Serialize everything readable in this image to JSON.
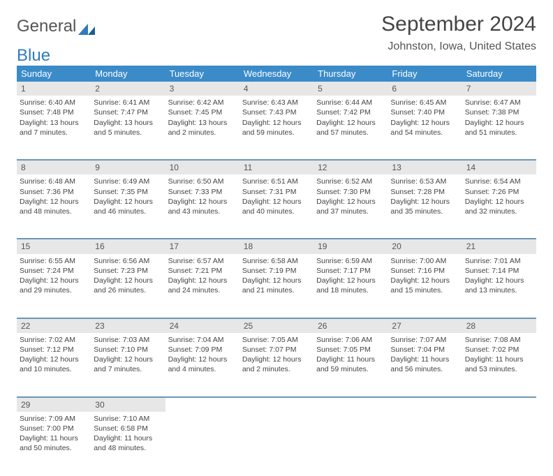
{
  "brand": {
    "part1": "General",
    "part2": "Blue"
  },
  "title": "September 2024",
  "location": "Johnston, Iowa, United States",
  "colors": {
    "header_bg": "#3b8bc9",
    "header_text": "#ffffff",
    "daynum_bg": "#e7e7e7",
    "cell_border": "#6c96b6",
    "text": "#444444",
    "brand_accent": "#2f7bbf"
  },
  "weekdays": [
    "Sunday",
    "Monday",
    "Tuesday",
    "Wednesday",
    "Thursday",
    "Friday",
    "Saturday"
  ],
  "weeks": [
    {
      "nums": [
        "1",
        "2",
        "3",
        "4",
        "5",
        "6",
        "7"
      ],
      "cells": [
        {
          "sr": "Sunrise: 6:40 AM",
          "ss": "Sunset: 7:48 PM",
          "dl": "Daylight: 13 hours and 7 minutes."
        },
        {
          "sr": "Sunrise: 6:41 AM",
          "ss": "Sunset: 7:47 PM",
          "dl": "Daylight: 13 hours and 5 minutes."
        },
        {
          "sr": "Sunrise: 6:42 AM",
          "ss": "Sunset: 7:45 PM",
          "dl": "Daylight: 13 hours and 2 minutes."
        },
        {
          "sr": "Sunrise: 6:43 AM",
          "ss": "Sunset: 7:43 PM",
          "dl": "Daylight: 12 hours and 59 minutes."
        },
        {
          "sr": "Sunrise: 6:44 AM",
          "ss": "Sunset: 7:42 PM",
          "dl": "Daylight: 12 hours and 57 minutes."
        },
        {
          "sr": "Sunrise: 6:45 AM",
          "ss": "Sunset: 7:40 PM",
          "dl": "Daylight: 12 hours and 54 minutes."
        },
        {
          "sr": "Sunrise: 6:47 AM",
          "ss": "Sunset: 7:38 PM",
          "dl": "Daylight: 12 hours and 51 minutes."
        }
      ]
    },
    {
      "nums": [
        "8",
        "9",
        "10",
        "11",
        "12",
        "13",
        "14"
      ],
      "cells": [
        {
          "sr": "Sunrise: 6:48 AM",
          "ss": "Sunset: 7:36 PM",
          "dl": "Daylight: 12 hours and 48 minutes."
        },
        {
          "sr": "Sunrise: 6:49 AM",
          "ss": "Sunset: 7:35 PM",
          "dl": "Daylight: 12 hours and 46 minutes."
        },
        {
          "sr": "Sunrise: 6:50 AM",
          "ss": "Sunset: 7:33 PM",
          "dl": "Daylight: 12 hours and 43 minutes."
        },
        {
          "sr": "Sunrise: 6:51 AM",
          "ss": "Sunset: 7:31 PM",
          "dl": "Daylight: 12 hours and 40 minutes."
        },
        {
          "sr": "Sunrise: 6:52 AM",
          "ss": "Sunset: 7:30 PM",
          "dl": "Daylight: 12 hours and 37 minutes."
        },
        {
          "sr": "Sunrise: 6:53 AM",
          "ss": "Sunset: 7:28 PM",
          "dl": "Daylight: 12 hours and 35 minutes."
        },
        {
          "sr": "Sunrise: 6:54 AM",
          "ss": "Sunset: 7:26 PM",
          "dl": "Daylight: 12 hours and 32 minutes."
        }
      ]
    },
    {
      "nums": [
        "15",
        "16",
        "17",
        "18",
        "19",
        "20",
        "21"
      ],
      "cells": [
        {
          "sr": "Sunrise: 6:55 AM",
          "ss": "Sunset: 7:24 PM",
          "dl": "Daylight: 12 hours and 29 minutes."
        },
        {
          "sr": "Sunrise: 6:56 AM",
          "ss": "Sunset: 7:23 PM",
          "dl": "Daylight: 12 hours and 26 minutes."
        },
        {
          "sr": "Sunrise: 6:57 AM",
          "ss": "Sunset: 7:21 PM",
          "dl": "Daylight: 12 hours and 24 minutes."
        },
        {
          "sr": "Sunrise: 6:58 AM",
          "ss": "Sunset: 7:19 PM",
          "dl": "Daylight: 12 hours and 21 minutes."
        },
        {
          "sr": "Sunrise: 6:59 AM",
          "ss": "Sunset: 7:17 PM",
          "dl": "Daylight: 12 hours and 18 minutes."
        },
        {
          "sr": "Sunrise: 7:00 AM",
          "ss": "Sunset: 7:16 PM",
          "dl": "Daylight: 12 hours and 15 minutes."
        },
        {
          "sr": "Sunrise: 7:01 AM",
          "ss": "Sunset: 7:14 PM",
          "dl": "Daylight: 12 hours and 13 minutes."
        }
      ]
    },
    {
      "nums": [
        "22",
        "23",
        "24",
        "25",
        "26",
        "27",
        "28"
      ],
      "cells": [
        {
          "sr": "Sunrise: 7:02 AM",
          "ss": "Sunset: 7:12 PM",
          "dl": "Daylight: 12 hours and 10 minutes."
        },
        {
          "sr": "Sunrise: 7:03 AM",
          "ss": "Sunset: 7:10 PM",
          "dl": "Daylight: 12 hours and 7 minutes."
        },
        {
          "sr": "Sunrise: 7:04 AM",
          "ss": "Sunset: 7:09 PM",
          "dl": "Daylight: 12 hours and 4 minutes."
        },
        {
          "sr": "Sunrise: 7:05 AM",
          "ss": "Sunset: 7:07 PM",
          "dl": "Daylight: 12 hours and 2 minutes."
        },
        {
          "sr": "Sunrise: 7:06 AM",
          "ss": "Sunset: 7:05 PM",
          "dl": "Daylight: 11 hours and 59 minutes."
        },
        {
          "sr": "Sunrise: 7:07 AM",
          "ss": "Sunset: 7:04 PM",
          "dl": "Daylight: 11 hours and 56 minutes."
        },
        {
          "sr": "Sunrise: 7:08 AM",
          "ss": "Sunset: 7:02 PM",
          "dl": "Daylight: 11 hours and 53 minutes."
        }
      ]
    },
    {
      "nums": [
        "29",
        "30",
        "",
        "",
        "",
        "",
        ""
      ],
      "cells": [
        {
          "sr": "Sunrise: 7:09 AM",
          "ss": "Sunset: 7:00 PM",
          "dl": "Daylight: 11 hours and 50 minutes."
        },
        {
          "sr": "Sunrise: 7:10 AM",
          "ss": "Sunset: 6:58 PM",
          "dl": "Daylight: 11 hours and 48 minutes."
        },
        null,
        null,
        null,
        null,
        null
      ]
    }
  ]
}
